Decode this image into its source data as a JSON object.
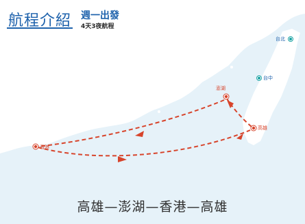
{
  "header": {
    "title": "航程介紹",
    "departure": "週一出發",
    "duration": "4天3夜航程"
  },
  "cities": {
    "taipei": "台北",
    "taichung": "台中",
    "penghu": "澎湖",
    "kaohsiung": "高雄",
    "hongkong": "香港"
  },
  "route_caption": "高雄—澎湖—香港—高雄",
  "colors": {
    "sea": "#e6f2f9",
    "land": "#ffffff",
    "route": "#d7442b",
    "title": "#1e62ac",
    "city_marker": "#1aa3a3"
  }
}
